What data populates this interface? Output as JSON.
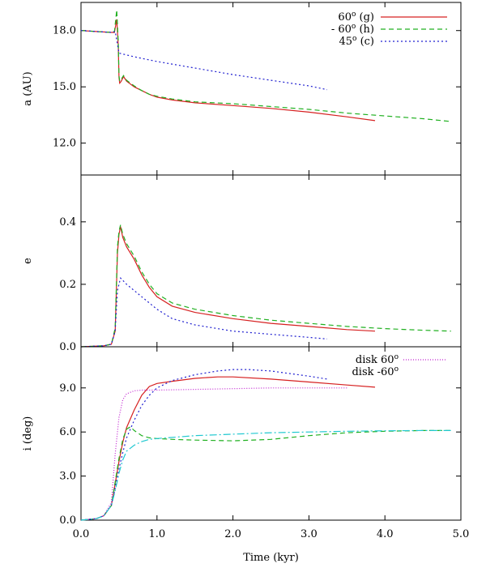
{
  "chart_data": [
    {
      "type": "line",
      "ylabel": "a (AU)",
      "xlim": [
        0,
        5
      ],
      "ylim": [
        10.3,
        19.5
      ],
      "yticks": [
        "12.0",
        "15.0",
        "18.0"
      ],
      "ytick_values": [
        12,
        15,
        18
      ],
      "grid": false,
      "legend_placement": "top-right",
      "series": [
        {
          "name": "60° (g)",
          "legend_main": "60",
          "legend_sup": "o",
          "legend_tail": " (g)",
          "color": "#d62020",
          "dash": "",
          "x": [
            0.0,
            0.2,
            0.4,
            0.44,
            0.47,
            0.49,
            0.5,
            0.51,
            0.53,
            0.56,
            0.6,
            0.7,
            0.8,
            0.9,
            1.0,
            1.2,
            1.5,
            2.0,
            2.5,
            3.0,
            3.5,
            3.87
          ],
          "y": [
            18.0,
            17.95,
            17.9,
            17.9,
            18.6,
            17.2,
            15.5,
            15.2,
            15.3,
            15.55,
            15.3,
            15.0,
            14.8,
            14.6,
            14.45,
            14.3,
            14.15,
            14.0,
            13.85,
            13.65,
            13.4,
            13.2
          ]
        },
        {
          "name": "- 60° (h)",
          "legend_main": "- 60",
          "legend_sup": "o",
          "legend_tail": " (h)",
          "color": "#20b020",
          "dash": "6,4",
          "x": [
            0.0,
            0.2,
            0.4,
            0.44,
            0.47,
            0.49,
            0.5,
            0.51,
            0.53,
            0.56,
            0.6,
            0.7,
            0.8,
            0.9,
            1.0,
            1.2,
            1.5,
            2.0,
            2.5,
            3.0,
            3.5,
            4.0,
            4.5,
            4.87
          ],
          "y": [
            18.0,
            17.95,
            17.9,
            17.95,
            19.1,
            17.4,
            15.6,
            15.3,
            15.4,
            15.6,
            15.35,
            15.05,
            14.8,
            14.6,
            14.5,
            14.35,
            14.2,
            14.1,
            13.95,
            13.8,
            13.6,
            13.45,
            13.3,
            13.15
          ]
        },
        {
          "name": "45° (c)",
          "legend_main": "45",
          "legend_sup": "o",
          "legend_tail": " (c)",
          "color": "#2020d0",
          "dash": "2,3",
          "x": [
            0.0,
            0.2,
            0.4,
            0.45,
            0.5,
            0.55,
            0.7,
            1.0,
            1.5,
            2.0,
            2.5,
            3.0,
            3.24
          ],
          "y": [
            18.0,
            17.95,
            17.9,
            17.95,
            16.8,
            16.75,
            16.6,
            16.35,
            16.0,
            15.65,
            15.35,
            15.05,
            14.85
          ]
        }
      ]
    },
    {
      "type": "line",
      "ylabel": "e",
      "xlim": [
        0,
        5
      ],
      "ylim": [
        0,
        0.55
      ],
      "yticks": [
        "0.0",
        "0.2",
        "0.4"
      ],
      "ytick_values": [
        0,
        0.2,
        0.4
      ],
      "grid": false,
      "series": [
        {
          "name": "60° (g)",
          "color": "#d62020",
          "dash": "",
          "x": [
            0.0,
            0.3,
            0.4,
            0.45,
            0.48,
            0.5,
            0.52,
            0.55,
            0.6,
            0.7,
            0.8,
            0.9,
            1.0,
            1.2,
            1.5,
            2.0,
            2.5,
            3.0,
            3.5,
            3.87
          ],
          "y": [
            0.0,
            0.003,
            0.008,
            0.05,
            0.3,
            0.36,
            0.385,
            0.35,
            0.32,
            0.28,
            0.23,
            0.19,
            0.16,
            0.13,
            0.11,
            0.09,
            0.075,
            0.065,
            0.055,
            0.05
          ]
        },
        {
          "name": "- 60° (h)",
          "color": "#20b020",
          "dash": "6,4",
          "x": [
            0.0,
            0.3,
            0.4,
            0.45,
            0.48,
            0.5,
            0.52,
            0.55,
            0.6,
            0.7,
            0.8,
            0.9,
            1.0,
            1.2,
            1.5,
            2.0,
            2.5,
            3.0,
            3.5,
            4.0,
            4.5,
            4.87
          ],
          "y": [
            0.0,
            0.003,
            0.008,
            0.06,
            0.32,
            0.37,
            0.39,
            0.36,
            0.33,
            0.29,
            0.24,
            0.2,
            0.17,
            0.14,
            0.12,
            0.1,
            0.085,
            0.075,
            0.065,
            0.058,
            0.053,
            0.05
          ]
        },
        {
          "name": "45° (c)",
          "color": "#2020d0",
          "dash": "2,3",
          "x": [
            0.0,
            0.3,
            0.4,
            0.45,
            0.48,
            0.52,
            0.6,
            0.8,
            1.0,
            1.2,
            1.5,
            2.0,
            2.5,
            3.0,
            3.24
          ],
          "y": [
            0.0,
            0.003,
            0.008,
            0.05,
            0.18,
            0.22,
            0.2,
            0.16,
            0.12,
            0.09,
            0.07,
            0.05,
            0.04,
            0.03,
            0.025
          ]
        }
      ]
    },
    {
      "type": "line",
      "ylabel": "i (deg)",
      "xlabel": "Time (kyr)",
      "xlim": [
        0,
        5
      ],
      "ylim": [
        0,
        11.8
      ],
      "xticks": [
        "0.0",
        "1.0",
        "2.0",
        "3.0",
        "4.0",
        "5.0"
      ],
      "xtick_values": [
        0,
        1,
        2,
        3,
        4,
        5
      ],
      "yticks": [
        "0.0",
        "3.0",
        "6.0",
        "9.0"
      ],
      "ytick_values": [
        0,
        3,
        6,
        9
      ],
      "grid": false,
      "legend_placement": "top-right",
      "series": [
        {
          "name": "60° (g)",
          "color": "#d62020",
          "dash": "",
          "x": [
            0.0,
            0.2,
            0.3,
            0.4,
            0.45,
            0.5,
            0.55,
            0.6,
            0.7,
            0.8,
            0.9,
            1.0,
            1.2,
            1.5,
            1.8,
            2.0,
            2.5,
            3.0,
            3.5,
            3.87
          ],
          "y": [
            0.0,
            0.1,
            0.3,
            1.0,
            2.5,
            4.0,
            5.3,
            6.3,
            7.5,
            8.5,
            9.1,
            9.3,
            9.45,
            9.65,
            9.75,
            9.75,
            9.6,
            9.4,
            9.2,
            9.05
          ]
        },
        {
          "name": "- 60° (h)",
          "color": "#20b020",
          "dash": "6,4",
          "x": [
            0.0,
            0.2,
            0.3,
            0.4,
            0.45,
            0.5,
            0.55,
            0.6,
            0.65,
            0.7,
            0.8,
            0.9,
            1.0,
            1.2,
            1.5,
            2.0,
            2.5,
            3.0,
            3.5,
            4.0,
            4.5,
            4.87
          ],
          "y": [
            0.0,
            0.1,
            0.3,
            1.0,
            2.6,
            4.2,
            5.5,
            6.2,
            6.35,
            6.1,
            5.75,
            5.6,
            5.55,
            5.5,
            5.45,
            5.4,
            5.5,
            5.75,
            5.95,
            6.05,
            6.1,
            6.1
          ]
        },
        {
          "name": "45° (c)",
          "color": "#2020d0",
          "dash": "2,3",
          "x": [
            0.0,
            0.2,
            0.3,
            0.4,
            0.45,
            0.5,
            0.55,
            0.6,
            0.7,
            0.8,
            0.9,
            1.0,
            1.2,
            1.5,
            1.8,
            2.0,
            2.2,
            2.5,
            3.0,
            3.24
          ],
          "y": [
            0.0,
            0.1,
            0.3,
            1.0,
            2.2,
            3.5,
            4.6,
            5.6,
            6.8,
            7.8,
            8.5,
            9.0,
            9.5,
            9.9,
            10.15,
            10.25,
            10.25,
            10.15,
            9.8,
            9.6
          ]
        },
        {
          "name": "disk 60°",
          "legend_main": "disk 60",
          "legend_sup": "o",
          "legend_tail": "",
          "color": "#c020d0",
          "dash": "1,2",
          "x": [
            0.0,
            0.2,
            0.3,
            0.4,
            0.45,
            0.5,
            0.55,
            0.6,
            0.7,
            0.8,
            1.0,
            1.5,
            2.0,
            2.5,
            3.0,
            3.5
          ],
          "y": [
            0.0,
            0.1,
            0.3,
            1.2,
            4.5,
            7.0,
            8.2,
            8.6,
            8.8,
            8.85,
            8.85,
            8.9,
            8.95,
            9.0,
            9.0,
            9.0
          ]
        },
        {
          "name": "disk -60°",
          "legend_main": "disk -60",
          "legend_sup": "o",
          "legend_tail": "",
          "color": "#20c8d0",
          "dash": "9,3,2,3",
          "x": [
            0.0,
            0.2,
            0.3,
            0.4,
            0.45,
            0.5,
            0.55,
            0.6,
            0.7,
            0.8,
            0.9,
            1.0,
            1.5,
            2.0,
            2.5,
            3.0,
            3.5,
            4.0,
            4.5,
            4.87
          ],
          "y": [
            0.0,
            0.1,
            0.3,
            1.0,
            2.0,
            3.2,
            4.1,
            4.7,
            5.1,
            5.35,
            5.5,
            5.55,
            5.75,
            5.85,
            5.95,
            6.0,
            6.05,
            6.08,
            6.1,
            6.1
          ]
        }
      ]
    }
  ]
}
